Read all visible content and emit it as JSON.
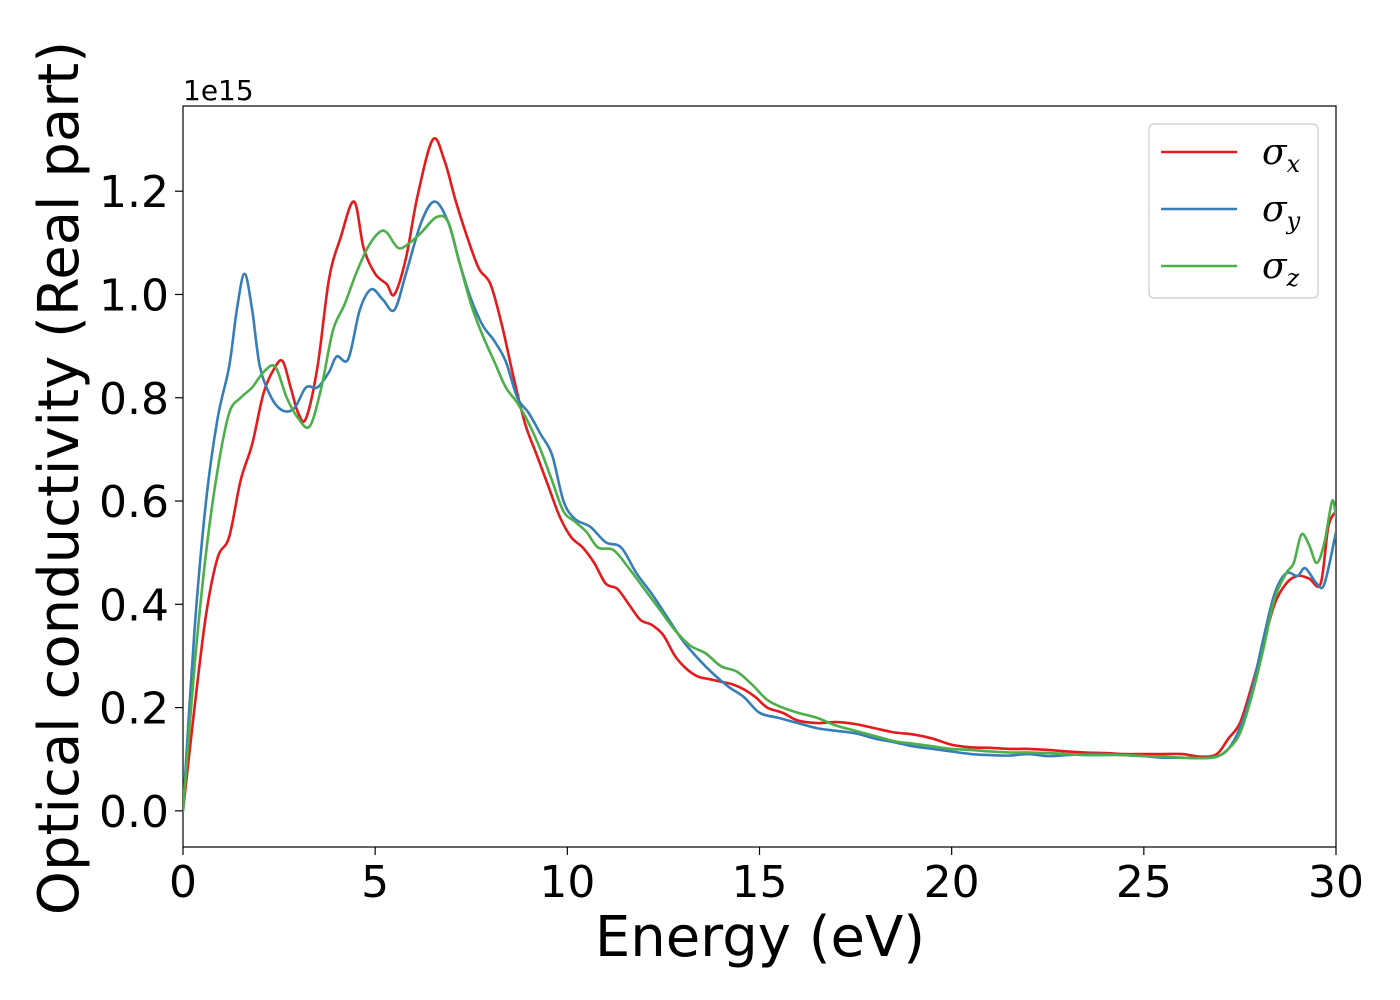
{
  "chart_data": {
    "type": "line",
    "xlabel": "Energy (eV)",
    "ylabel": "Optical conductivity (Real part)",
    "offset_text": "1e15",
    "xlim": [
      0,
      30
    ],
    "ylim": [
      -0.07,
      1.365
    ],
    "x_ticks": [
      0,
      5,
      10,
      15,
      20,
      25,
      30
    ],
    "x_tick_labels": [
      "0",
      "5",
      "10",
      "15",
      "20",
      "25",
      "30"
    ],
    "y_ticks": [
      0.0,
      0.2,
      0.4,
      0.6,
      0.8,
      1.0,
      1.2
    ],
    "y_tick_labels": [
      "0.0",
      "0.2",
      "0.4",
      "0.6",
      "0.8",
      "1.0",
      "1.2"
    ],
    "grid": false,
    "legend_position": "top-right",
    "series": [
      {
        "name": "σx",
        "symbol": "σ",
        "subscript": "x",
        "color": "#e41a1c",
        "points": [
          [
            0,
            0
          ],
          [
            0.3,
            0.2
          ],
          [
            0.6,
            0.38
          ],
          [
            0.9,
            0.49
          ],
          [
            1.2,
            0.53
          ],
          [
            1.5,
            0.64
          ],
          [
            1.8,
            0.71
          ],
          [
            2.1,
            0.81
          ],
          [
            2.4,
            0.86
          ],
          [
            2.6,
            0.87
          ],
          [
            2.8,
            0.82
          ],
          [
            3.0,
            0.77
          ],
          [
            3.2,
            0.76
          ],
          [
            3.5,
            0.86
          ],
          [
            3.8,
            1.03
          ],
          [
            4.1,
            1.11
          ],
          [
            4.45,
            1.18
          ],
          [
            4.7,
            1.09
          ],
          [
            5.0,
            1.04
          ],
          [
            5.3,
            1.02
          ],
          [
            5.5,
            1.0
          ],
          [
            5.8,
            1.07
          ],
          [
            6.1,
            1.19
          ],
          [
            6.5,
            1.3
          ],
          [
            6.8,
            1.26
          ],
          [
            7.1,
            1.18
          ],
          [
            7.4,
            1.11
          ],
          [
            7.7,
            1.05
          ],
          [
            8.0,
            1.02
          ],
          [
            8.3,
            0.94
          ],
          [
            8.6,
            0.84
          ],
          [
            8.9,
            0.75
          ],
          [
            9.2,
            0.69
          ],
          [
            9.5,
            0.63
          ],
          [
            9.8,
            0.57
          ],
          [
            10.1,
            0.53
          ],
          [
            10.4,
            0.51
          ],
          [
            10.7,
            0.48
          ],
          [
            11.0,
            0.44
          ],
          [
            11.3,
            0.43
          ],
          [
            11.6,
            0.4
          ],
          [
            11.9,
            0.37
          ],
          [
            12.2,
            0.36
          ],
          [
            12.5,
            0.34
          ],
          [
            12.8,
            0.3
          ],
          [
            13.1,
            0.275
          ],
          [
            13.4,
            0.26
          ],
          [
            13.7,
            0.255
          ],
          [
            14.0,
            0.25
          ],
          [
            14.3,
            0.245
          ],
          [
            14.6,
            0.235
          ],
          [
            14.9,
            0.22
          ],
          [
            15.2,
            0.2
          ],
          [
            15.6,
            0.19
          ],
          [
            16.0,
            0.175
          ],
          [
            16.5,
            0.17
          ],
          [
            17.0,
            0.172
          ],
          [
            17.5,
            0.168
          ],
          [
            18.0,
            0.16
          ],
          [
            18.5,
            0.152
          ],
          [
            19.0,
            0.148
          ],
          [
            19.5,
            0.14
          ],
          [
            20.0,
            0.128
          ],
          [
            20.5,
            0.123
          ],
          [
            21.0,
            0.122
          ],
          [
            21.5,
            0.12
          ],
          [
            22.0,
            0.12
          ],
          [
            22.5,
            0.118
          ],
          [
            23.0,
            0.115
          ],
          [
            23.5,
            0.113
          ],
          [
            24.0,
            0.112
          ],
          [
            24.5,
            0.11
          ],
          [
            25.0,
            0.11
          ],
          [
            25.5,
            0.11
          ],
          [
            26.0,
            0.11
          ],
          [
            26.5,
            0.105
          ],
          [
            26.9,
            0.11
          ],
          [
            27.2,
            0.14
          ],
          [
            27.5,
            0.17
          ],
          [
            27.8,
            0.24
          ],
          [
            28.1,
            0.32
          ],
          [
            28.4,
            0.4
          ],
          [
            28.7,
            0.44
          ],
          [
            29.0,
            0.455
          ],
          [
            29.3,
            0.45
          ],
          [
            29.6,
            0.44
          ],
          [
            29.8,
            0.55
          ],
          [
            30.0,
            0.58
          ]
        ]
      },
      {
        "name": "σy",
        "symbol": "σ",
        "subscript": "y",
        "color": "#377eb8",
        "points": [
          [
            0,
            0
          ],
          [
            0.3,
            0.35
          ],
          [
            0.6,
            0.6
          ],
          [
            0.9,
            0.76
          ],
          [
            1.2,
            0.86
          ],
          [
            1.4,
            0.97
          ],
          [
            1.6,
            1.04
          ],
          [
            1.8,
            0.97
          ],
          [
            2.0,
            0.86
          ],
          [
            2.3,
            0.8
          ],
          [
            2.6,
            0.775
          ],
          [
            2.9,
            0.78
          ],
          [
            3.2,
            0.82
          ],
          [
            3.5,
            0.82
          ],
          [
            3.8,
            0.85
          ],
          [
            4.0,
            0.88
          ],
          [
            4.3,
            0.875
          ],
          [
            4.6,
            0.97
          ],
          [
            4.9,
            1.01
          ],
          [
            5.2,
            0.99
          ],
          [
            5.5,
            0.97
          ],
          [
            5.8,
            1.04
          ],
          [
            6.2,
            1.14
          ],
          [
            6.55,
            1.18
          ],
          [
            6.9,
            1.14
          ],
          [
            7.2,
            1.06
          ],
          [
            7.5,
            0.99
          ],
          [
            7.8,
            0.94
          ],
          [
            8.1,
            0.91
          ],
          [
            8.4,
            0.87
          ],
          [
            8.7,
            0.8
          ],
          [
            9.0,
            0.77
          ],
          [
            9.3,
            0.73
          ],
          [
            9.6,
            0.69
          ],
          [
            9.9,
            0.6
          ],
          [
            10.2,
            0.565
          ],
          [
            10.6,
            0.55
          ],
          [
            11.0,
            0.52
          ],
          [
            11.4,
            0.51
          ],
          [
            11.8,
            0.46
          ],
          [
            12.2,
            0.42
          ],
          [
            12.6,
            0.375
          ],
          [
            13.0,
            0.33
          ],
          [
            13.4,
            0.295
          ],
          [
            13.8,
            0.265
          ],
          [
            14.2,
            0.24
          ],
          [
            14.6,
            0.22
          ],
          [
            15.0,
            0.19
          ],
          [
            15.5,
            0.18
          ],
          [
            16.0,
            0.17
          ],
          [
            16.5,
            0.16
          ],
          [
            17.0,
            0.155
          ],
          [
            17.5,
            0.15
          ],
          [
            18.0,
            0.14
          ],
          [
            18.5,
            0.133
          ],
          [
            19.0,
            0.125
          ],
          [
            19.5,
            0.12
          ],
          [
            20.0,
            0.115
          ],
          [
            20.5,
            0.11
          ],
          [
            21.0,
            0.108
          ],
          [
            21.5,
            0.107
          ],
          [
            22.0,
            0.11
          ],
          [
            22.5,
            0.106
          ],
          [
            23.0,
            0.108
          ],
          [
            23.5,
            0.11
          ],
          [
            24.0,
            0.11
          ],
          [
            24.5,
            0.108
          ],
          [
            25.0,
            0.106
          ],
          [
            25.5,
            0.103
          ],
          [
            26.0,
            0.103
          ],
          [
            26.5,
            0.102
          ],
          [
            26.9,
            0.105
          ],
          [
            27.2,
            0.12
          ],
          [
            27.5,
            0.16
          ],
          [
            27.8,
            0.23
          ],
          [
            28.1,
            0.33
          ],
          [
            28.4,
            0.42
          ],
          [
            28.7,
            0.46
          ],
          [
            29.0,
            0.455
          ],
          [
            29.2,
            0.47
          ],
          [
            29.5,
            0.44
          ],
          [
            29.7,
            0.44
          ],
          [
            30.0,
            0.54
          ]
        ]
      },
      {
        "name": "σz",
        "symbol": "σ",
        "subscript": "z",
        "color": "#4daf4a",
        "points": [
          [
            0,
            0
          ],
          [
            0.3,
            0.28
          ],
          [
            0.6,
            0.5
          ],
          [
            0.9,
            0.66
          ],
          [
            1.2,
            0.77
          ],
          [
            1.5,
            0.8
          ],
          [
            1.8,
            0.82
          ],
          [
            2.1,
            0.85
          ],
          [
            2.4,
            0.86
          ],
          [
            2.7,
            0.8
          ],
          [
            3.0,
            0.76
          ],
          [
            3.3,
            0.745
          ],
          [
            3.6,
            0.82
          ],
          [
            3.9,
            0.93
          ],
          [
            4.2,
            0.98
          ],
          [
            4.5,
            1.04
          ],
          [
            4.8,
            1.09
          ],
          [
            5.1,
            1.12
          ],
          [
            5.3,
            1.12
          ],
          [
            5.6,
            1.09
          ],
          [
            5.9,
            1.1
          ],
          [
            6.2,
            1.12
          ],
          [
            6.6,
            1.15
          ],
          [
            6.9,
            1.14
          ],
          [
            7.2,
            1.06
          ],
          [
            7.5,
            0.98
          ],
          [
            7.8,
            0.92
          ],
          [
            8.1,
            0.87
          ],
          [
            8.4,
            0.82
          ],
          [
            8.7,
            0.79
          ],
          [
            9.0,
            0.75
          ],
          [
            9.3,
            0.7
          ],
          [
            9.6,
            0.64
          ],
          [
            9.9,
            0.58
          ],
          [
            10.2,
            0.56
          ],
          [
            10.5,
            0.54
          ],
          [
            10.8,
            0.51
          ],
          [
            11.2,
            0.505
          ],
          [
            11.6,
            0.47
          ],
          [
            12.0,
            0.43
          ],
          [
            12.4,
            0.39
          ],
          [
            12.8,
            0.35
          ],
          [
            13.2,
            0.32
          ],
          [
            13.6,
            0.305
          ],
          [
            14.0,
            0.28
          ],
          [
            14.4,
            0.27
          ],
          [
            14.8,
            0.245
          ],
          [
            15.2,
            0.215
          ],
          [
            15.6,
            0.2
          ],
          [
            16.0,
            0.19
          ],
          [
            16.5,
            0.18
          ],
          [
            17.0,
            0.165
          ],
          [
            17.5,
            0.155
          ],
          [
            18.0,
            0.145
          ],
          [
            18.5,
            0.135
          ],
          [
            19.0,
            0.13
          ],
          [
            19.5,
            0.125
          ],
          [
            20.0,
            0.12
          ],
          [
            20.5,
            0.118
          ],
          [
            21.0,
            0.115
          ],
          [
            21.5,
            0.113
          ],
          [
            22.0,
            0.113
          ],
          [
            22.5,
            0.112
          ],
          [
            23.0,
            0.11
          ],
          [
            23.5,
            0.108
          ],
          [
            24.0,
            0.108
          ],
          [
            24.5,
            0.108
          ],
          [
            25.0,
            0.106
          ],
          [
            25.5,
            0.105
          ],
          [
            26.0,
            0.103
          ],
          [
            26.5,
            0.102
          ],
          [
            26.9,
            0.105
          ],
          [
            27.2,
            0.12
          ],
          [
            27.5,
            0.15
          ],
          [
            27.8,
            0.22
          ],
          [
            28.1,
            0.31
          ],
          [
            28.4,
            0.41
          ],
          [
            28.7,
            0.46
          ],
          [
            28.9,
            0.48
          ],
          [
            29.1,
            0.535
          ],
          [
            29.3,
            0.515
          ],
          [
            29.5,
            0.48
          ],
          [
            29.7,
            0.52
          ],
          [
            29.9,
            0.6
          ],
          [
            30.0,
            0.57
          ]
        ]
      }
    ]
  }
}
